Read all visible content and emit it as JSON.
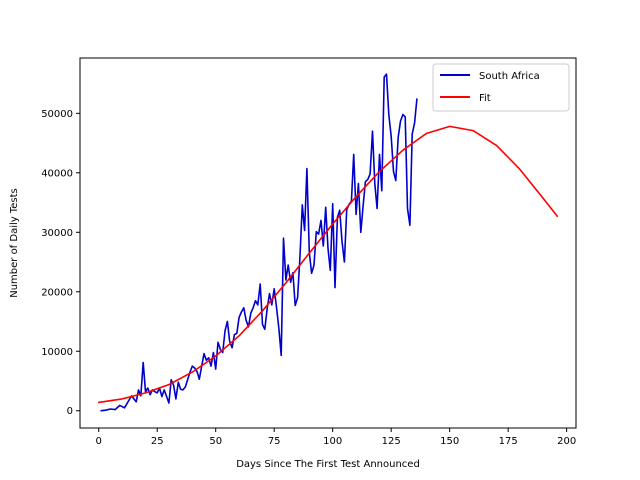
{
  "chart_data": {
    "type": "line",
    "xlabel": "Days Since The First Test Announced",
    "ylabel": "Number of Daily Tests",
    "xlim": [
      -8,
      204
    ],
    "ylim": [
      -2900,
      59300
    ],
    "xticks": [
      0,
      25,
      50,
      75,
      100,
      125,
      150,
      175,
      200
    ],
    "yticks": [
      0,
      10000,
      20000,
      30000,
      40000,
      50000
    ],
    "grid": false,
    "legend_position": "top-right",
    "series": [
      {
        "name": "South Africa",
        "color": "#0000cc",
        "x": [
          1,
          3,
          5,
          7,
          9,
          11,
          13,
          14,
          16,
          17,
          18,
          19,
          20,
          21,
          22,
          23,
          24,
          25,
          26,
          27,
          28,
          29,
          30,
          31,
          32,
          33,
          34,
          35,
          36,
          37,
          38,
          39,
          40,
          41,
          42,
          43,
          44,
          45,
          46,
          47,
          48,
          49,
          50,
          51,
          52,
          53,
          54,
          55,
          56,
          57,
          58,
          59,
          60,
          61,
          62,
          63,
          64,
          65,
          66,
          67,
          68,
          69,
          70,
          71,
          72,
          73,
          74,
          75,
          76,
          77,
          78,
          79,
          80,
          81,
          82,
          83,
          84,
          85,
          86,
          87,
          88,
          89,
          90,
          91,
          92,
          93,
          94,
          95,
          96,
          97,
          98,
          99,
          100,
          101,
          102,
          103,
          104,
          105,
          106,
          107,
          108,
          109,
          110,
          111,
          112,
          113,
          114,
          115,
          116,
          117,
          118,
          119,
          120,
          121,
          122,
          123,
          124,
          125,
          126,
          127,
          128,
          129,
          130,
          131,
          132,
          133,
          134,
          135,
          136
        ],
        "y": [
          0,
          100,
          300,
          200,
          900,
          500,
          1800,
          2500,
          1500,
          3500,
          2500,
          8100,
          3200,
          3800,
          2700,
          3500,
          3200,
          3000,
          3800,
          2400,
          3500,
          2400,
          1300,
          5200,
          4300,
          2000,
          4800,
          3600,
          3500,
          4000,
          5200,
          6500,
          7500,
          7200,
          6600,
          5300,
          7500,
          9600,
          8500,
          8900,
          7500,
          9800,
          7000,
          11500,
          10300,
          9800,
          13500,
          15000,
          11600,
          10600,
          12800,
          13000,
          15700,
          16600,
          17300,
          15200,
          14100,
          16400,
          17300,
          18500,
          17800,
          21300,
          14500,
          13700,
          17200,
          19700,
          17800,
          20500,
          17400,
          13800,
          9300,
          29000,
          22000,
          24500,
          21600,
          23200,
          17700,
          19000,
          25700,
          34600,
          30300,
          40700,
          26600,
          23100,
          24500,
          30100,
          29700,
          32000,
          27700,
          34200,
          27300,
          23600,
          34800,
          20700,
          32500,
          33700,
          28500,
          25000,
          33800,
          34700,
          35200,
          43100,
          33000,
          38200,
          30000,
          34400,
          38500,
          38900,
          39800,
          47000,
          38200,
          34000,
          43100,
          37000,
          56100,
          56600,
          49800,
          46100,
          40200,
          38700,
          46000,
          48700,
          49800,
          49400,
          34000,
          31200,
          46500,
          48400,
          52400
        ]
      },
      {
        "name": "Fit",
        "color": "#ff0000",
        "x": [
          0,
          10,
          20,
          30,
          40,
          50,
          60,
          70,
          80,
          90,
          100,
          110,
          120,
          130,
          140,
          150,
          160,
          170,
          180,
          190,
          196
        ],
        "y": [
          1400,
          2000,
          3000,
          4400,
          6500,
          9200,
          12600,
          16800,
          21500,
          26500,
          31400,
          36000,
          40200,
          43800,
          46600,
          47800,
          47100,
          44600,
          40600,
          35700,
          32700
        ]
      }
    ]
  }
}
